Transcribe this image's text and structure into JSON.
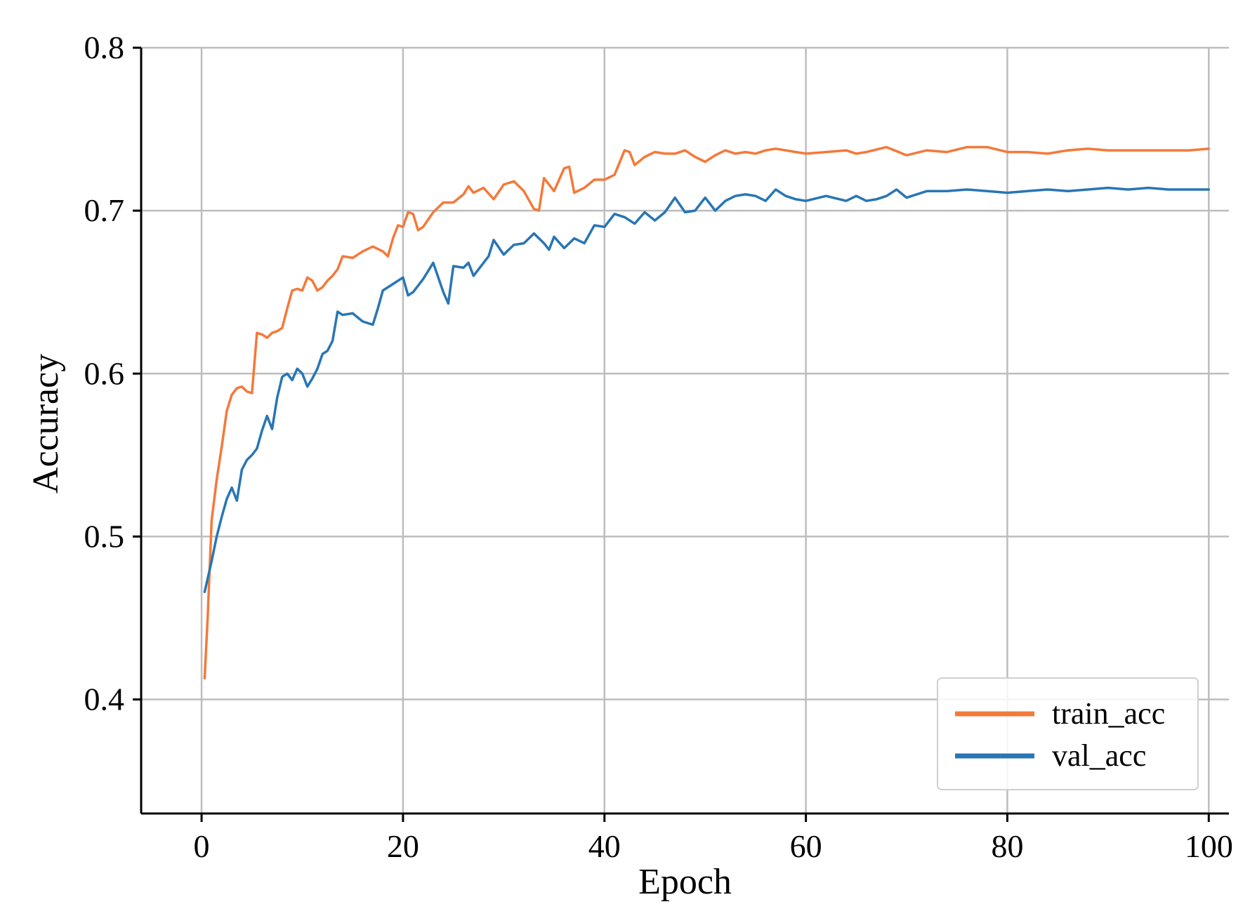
{
  "chart_data": {
    "type": "line",
    "title": "",
    "xlabel": "Epoch",
    "ylabel": "Accuracy",
    "xlim": [
      -6,
      102
    ],
    "ylim": [
      0.33,
      0.8
    ],
    "xticks": [
      0,
      20,
      40,
      60,
      80,
      100
    ],
    "yticks": [
      0.4,
      0.5,
      0.6,
      0.7,
      0.8
    ],
    "xtick_labels": [
      "0",
      "20",
      "40",
      "60",
      "80",
      "100"
    ],
    "ytick_labels": [
      "0.4",
      "0.5",
      "0.6",
      "0.7",
      "0.8"
    ],
    "grid": true,
    "legend_position": "bottom-right",
    "series": [
      {
        "name": "train_acc",
        "color": "#f4793a",
        "x": [
          0.3,
          0.6,
          1,
          1.5,
          2,
          2.5,
          3,
          3.5,
          4,
          4.5,
          5,
          5.5,
          6,
          6.5,
          7,
          7.5,
          8,
          8.5,
          9,
          9.5,
          10,
          10.5,
          11,
          11.5,
          12,
          12.5,
          13,
          13.5,
          14,
          15,
          16,
          17,
          18,
          18.5,
          19,
          19.5,
          20,
          20.5,
          21,
          21.5,
          22,
          23,
          24,
          25,
          26,
          26.5,
          27,
          28,
          29,
          30,
          31,
          32,
          33,
          33.5,
          34,
          35,
          36,
          36.5,
          37,
          38,
          39,
          40,
          41,
          42,
          42.5,
          43,
          44,
          45,
          46,
          47,
          48,
          49,
          50,
          51,
          52,
          53,
          54,
          55,
          56,
          57,
          58,
          59,
          60,
          62,
          64,
          65,
          66,
          68,
          70,
          72,
          74,
          76,
          78,
          80,
          82,
          84,
          86,
          88,
          90,
          92,
          94,
          96,
          98,
          100
        ],
        "values": [
          0.413,
          0.45,
          0.51,
          0.535,
          0.555,
          0.577,
          0.587,
          0.591,
          0.592,
          0.589,
          0.588,
          0.625,
          0.624,
          0.622,
          0.625,
          0.626,
          0.628,
          0.64,
          0.651,
          0.652,
          0.651,
          0.659,
          0.657,
          0.651,
          0.653,
          0.657,
          0.66,
          0.664,
          0.672,
          0.671,
          0.675,
          0.678,
          0.675,
          0.672,
          0.683,
          0.691,
          0.69,
          0.699,
          0.698,
          0.688,
          0.69,
          0.699,
          0.705,
          0.705,
          0.71,
          0.715,
          0.711,
          0.714,
          0.707,
          0.716,
          0.718,
          0.712,
          0.701,
          0.7,
          0.72,
          0.712,
          0.726,
          0.727,
          0.711,
          0.714,
          0.719,
          0.719,
          0.722,
          0.737,
          0.736,
          0.728,
          0.733,
          0.736,
          0.735,
          0.735,
          0.737,
          0.733,
          0.73,
          0.734,
          0.737,
          0.735,
          0.736,
          0.735,
          0.737,
          0.738,
          0.737,
          0.736,
          0.735,
          0.736,
          0.737,
          0.735,
          0.736,
          0.739,
          0.734,
          0.737,
          0.736,
          0.739,
          0.739,
          0.736,
          0.736,
          0.735,
          0.737,
          0.738,
          0.737,
          0.737,
          0.737,
          0.737,
          0.737,
          0.738
        ]
      },
      {
        "name": "val_acc",
        "color": "#2876b4",
        "x": [
          0.3,
          1,
          1.5,
          2,
          2.5,
          3,
          3.5,
          4,
          4.5,
          5,
          5.5,
          6,
          6.5,
          7,
          7.5,
          8,
          8.5,
          9,
          9.5,
          10,
          10.5,
          11,
          11.5,
          12,
          12.5,
          13,
          13.5,
          14,
          15,
          16,
          17,
          17.5,
          18,
          19,
          20,
          20.5,
          21,
          22,
          23,
          24,
          24.5,
          25,
          26,
          26.5,
          27,
          28,
          28.5,
          29,
          30,
          31,
          32,
          33,
          34,
          34.5,
          35,
          36,
          36.5,
          37,
          38,
          39,
          40,
          41,
          42,
          43,
          44,
          45,
          46,
          47,
          48,
          49,
          50,
          51,
          52,
          53,
          54,
          55,
          56,
          57,
          58,
          59,
          60,
          62,
          64,
          65,
          66,
          67,
          68,
          69,
          70,
          72,
          74,
          76,
          78,
          80,
          82,
          84,
          86,
          88,
          90,
          92,
          94,
          96,
          98,
          100
        ],
        "values": [
          0.466,
          0.485,
          0.5,
          0.512,
          0.523,
          0.53,
          0.522,
          0.541,
          0.547,
          0.55,
          0.554,
          0.565,
          0.574,
          0.566,
          0.585,
          0.598,
          0.6,
          0.596,
          0.603,
          0.6,
          0.592,
          0.597,
          0.603,
          0.612,
          0.614,
          0.62,
          0.638,
          0.636,
          0.637,
          0.632,
          0.63,
          0.64,
          0.651,
          0.655,
          0.659,
          0.648,
          0.65,
          0.658,
          0.668,
          0.65,
          0.643,
          0.666,
          0.665,
          0.668,
          0.66,
          0.668,
          0.672,
          0.682,
          0.673,
          0.679,
          0.68,
          0.686,
          0.68,
          0.676,
          0.684,
          0.677,
          0.68,
          0.683,
          0.68,
          0.691,
          0.69,
          0.698,
          0.696,
          0.692,
          0.699,
          0.694,
          0.699,
          0.708,
          0.699,
          0.7,
          0.708,
          0.7,
          0.706,
          0.709,
          0.71,
          0.709,
          0.706,
          0.713,
          0.709,
          0.707,
          0.706,
          0.709,
          0.706,
          0.709,
          0.706,
          0.707,
          0.709,
          0.713,
          0.708,
          0.712,
          0.712,
          0.713,
          0.712,
          0.711,
          0.712,
          0.713,
          0.712,
          0.713,
          0.714,
          0.713,
          0.714,
          0.713,
          0.713,
          0.713
        ]
      }
    ]
  }
}
